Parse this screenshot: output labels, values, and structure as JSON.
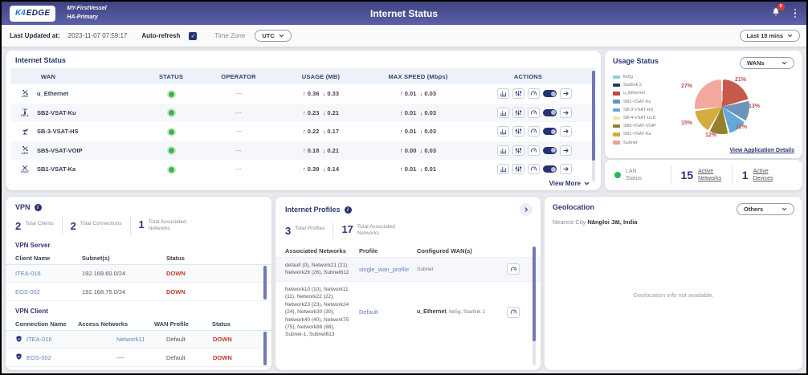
{
  "header": {
    "logo_k4": "K4",
    "logo_edge": "EDGE",
    "vessel_line1": "MY-FirstVessel",
    "vessel_line2": "HA-Primary",
    "title": "Internet Status",
    "notification_badge": "5"
  },
  "subheader": {
    "last_updated_label": "Last Updated at:",
    "last_updated_value": "2023-11-07 07:59:17",
    "auto_refresh_label": "Auto-refresh",
    "auto_refresh_checked": true,
    "time_zone_label": "Time Zone",
    "time_zone_value": "UTC",
    "time_range_value": "Last 15 mins"
  },
  "internet_status": {
    "title": "Internet Status",
    "columns": [
      "WAN",
      "STATUS",
      "OPERATOR",
      "USAGE (MB)",
      "MAX SPEED (Mbps)",
      "ACTIONS"
    ],
    "rows": [
      {
        "name": "u_Ethernet",
        "icon": "leo",
        "icon_label": "LEO",
        "status": "up",
        "operator": "---",
        "usage_up": "0.36",
        "usage_down": "0.33",
        "speed_up": "0.01",
        "speed_down": "0.03"
      },
      {
        "name": "SB2-VSAT-Ku",
        "icon": "cell",
        "icon_label": "CELL",
        "status": "up",
        "operator": "---",
        "usage_up": "0.23",
        "usage_down": "0.21",
        "speed_up": "0.01",
        "speed_down": "0.03"
      },
      {
        "name": "SB-3-VSAT-HS",
        "icon": "dish",
        "icon_label": "",
        "status": "up",
        "operator": "---",
        "usage_up": "0.22",
        "usage_down": "0.17",
        "speed_up": "0.01",
        "speed_down": "0.03"
      },
      {
        "name": "SB5-VSAT-VOIP",
        "icon": "leo",
        "icon_label": "LEO",
        "status": "up",
        "operator": "---",
        "usage_up": "0.18",
        "usage_down": "0.21",
        "speed_up": "0.00",
        "speed_down": "0.03"
      },
      {
        "name": "SB1-VSAT-Ka",
        "icon": "vsat",
        "icon_label": "VSAT",
        "status": "up",
        "operator": "---",
        "usage_up": "0.39",
        "usage_down": "0.14",
        "speed_up": "0.01",
        "speed_down": "0.01"
      }
    ],
    "view_more_label": "View More"
  },
  "usage_status": {
    "title": "Usage Status",
    "selector_value": "WANs",
    "legend": [
      {
        "label": "lte5g",
        "color": "#8ed0d6"
      },
      {
        "label": "Starlink 2",
        "color": "#1f3a6d"
      },
      {
        "label": "u_Ethernet",
        "color": "#bc4a3e"
      },
      {
        "label": "SB2-VSAT-Ku",
        "color": "#6d93bd"
      },
      {
        "label": "SB-3-VSAT-HS",
        "color": "#64a9d8"
      },
      {
        "label": "SB-4-VSAT-ULD",
        "color": "#f3e5a8"
      },
      {
        "label": "SB5-VSAT-VOIP",
        "color": "#93802f"
      },
      {
        "label": "SB1-VSAT-Ka",
        "color": "#d4ab3d"
      },
      {
        "label": "Subnet",
        "color": "#f0a094"
      }
    ],
    "view_details_label": "View Application Details",
    "chart_data": {
      "type": "pie",
      "title": "Usage Status",
      "unit": "percent",
      "label_color": "#c0504d",
      "legend_position": "left",
      "slices": [
        {
          "label": "u_Ethernet",
          "value": 21,
          "color": "#c65a4a",
          "label_pos": "top-right"
        },
        {
          "label": "SB2-VSAT-Ku",
          "value": 13,
          "color": "#6d93bd",
          "label_pos": "right"
        },
        {
          "label": "SB-3-VSAT-HS",
          "value": 12,
          "color": "#64a9d8",
          "label_pos": "bottom-right"
        },
        {
          "label": "SB5-VSAT-VOIP",
          "value": 12,
          "color": "#93802f",
          "label_pos": "bottom"
        },
        {
          "label": "SB1-VSAT-Ka",
          "value": 15,
          "color": "#d4ab3d",
          "label_pos": "left"
        },
        {
          "label": "Subnet",
          "value": 27,
          "color": "#f2a89c",
          "label_pos": "top-left"
        }
      ]
    }
  },
  "lan_bar": {
    "status_label": "LAN Status",
    "networks_count": "15",
    "networks_label": "Active Networks",
    "devices_count": "1",
    "devices_label": "Active Devices"
  },
  "vpn": {
    "title": "VPN",
    "stats": [
      {
        "value": "2",
        "label": "Total Clients"
      },
      {
        "value": "2",
        "label": "Total Connections"
      },
      {
        "value": "1",
        "label": "Total Associated Networks"
      }
    ],
    "server": {
      "title": "VPN Server",
      "columns": [
        "Client Name",
        "Subnet(s)",
        "Status"
      ],
      "rows": [
        {
          "client": "ITEA-016",
          "subnet": "192.168.60.0/24",
          "status": "DOWN"
        },
        {
          "client": "EOS-002",
          "subnet": "192.168.75.0/24",
          "status": "DOWN"
        }
      ]
    },
    "client": {
      "title": "VPN Client",
      "columns": [
        "Connection Name",
        "Access Networks",
        "WAN Profile",
        "Status"
      ],
      "rows": [
        {
          "connection": "ITEA-016",
          "access": "Network11",
          "profile": "Default",
          "status": "DOWN"
        },
        {
          "connection": "EOS-002",
          "access": "----",
          "profile": "Default",
          "status": "DOWN"
        }
      ]
    }
  },
  "internet_profiles": {
    "title": "Internet Profiles",
    "stats": [
      {
        "value": "3",
        "label": "Total Profiles"
      },
      {
        "value": "17",
        "label": "Total Associated Networks"
      }
    ],
    "columns": [
      "Associated Networks",
      "Profile",
      "Configured WAN(s)"
    ],
    "rows": [
      {
        "networks": "default (0), Network21 (21), Network26 (26), Subnet612",
        "profile": "single_wan_profile",
        "wans_bold": "",
        "wans_text": "Subnet"
      },
      {
        "networks": "Network10 (10), Network11 (11), Network22 (22), Network23 (23), Network24 (24), Network30 (30), Network40 (40), Network75 (75), Network88 (88), Subnet-1, Subnet613",
        "profile": "Default",
        "wans_bold": "u_Ethernet",
        "wans_text": ", lte5g, Starlink 2"
      }
    ]
  },
  "geolocation": {
    "title": "Geolocation",
    "selector_value": "Others",
    "nearest_city_label": "Nearest City",
    "nearest_city_value": "Nāngloi Jāt, India",
    "empty_message": "Geolocation info not available."
  }
}
